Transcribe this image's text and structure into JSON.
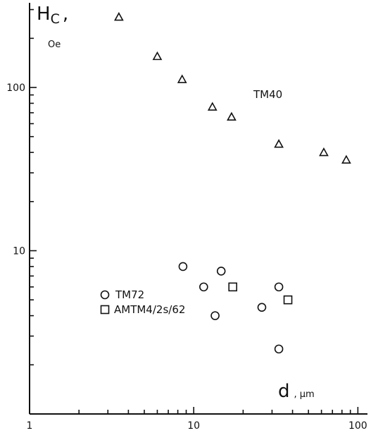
{
  "chart_data": {
    "type": "scatter",
    "title": "",
    "xscale": "log",
    "yscale": "log",
    "xlim": [
      1,
      110
    ],
    "ylim": [
      1,
      330
    ],
    "xticks": [
      1,
      10,
      100
    ],
    "yticks": [
      10,
      100
    ],
    "xtick_labels": [
      "1",
      "10",
      "100"
    ],
    "ytick_labels": [
      "10",
      "100"
    ],
    "xlabel": {
      "symbol": "d",
      "unit": ", μm"
    },
    "ylabel": {
      "symbol": "H",
      "subscript": "C",
      "comma": ",",
      "unit": "Oe"
    },
    "grid": false,
    "legend": [
      {
        "marker": "circle",
        "label": "TM72"
      },
      {
        "marker": "square",
        "label": "AMTM4/2s/62"
      }
    ],
    "annotations": [
      {
        "text": "TM40"
      }
    ],
    "series": [
      {
        "name": "TM40",
        "marker": "triangle",
        "points": [
          [
            3.5,
            270
          ],
          [
            6.0,
            155
          ],
          [
            8.5,
            112
          ],
          [
            13,
            76
          ],
          [
            17,
            66
          ],
          [
            33,
            45
          ],
          [
            62,
            40
          ],
          [
            85,
            36
          ]
        ]
      },
      {
        "name": "TM72",
        "marker": "circle",
        "points": [
          [
            8.6,
            8.0
          ],
          [
            11.5,
            6.0
          ],
          [
            13.5,
            4.0
          ],
          [
            14.7,
            7.5
          ],
          [
            26,
            4.5
          ],
          [
            33,
            6.0
          ],
          [
            33,
            2.5
          ]
        ]
      },
      {
        "name": "AMTM4/2s/62",
        "marker": "square",
        "points": [
          [
            17.3,
            6.0
          ],
          [
            37.5,
            5.0
          ]
        ]
      }
    ]
  }
}
